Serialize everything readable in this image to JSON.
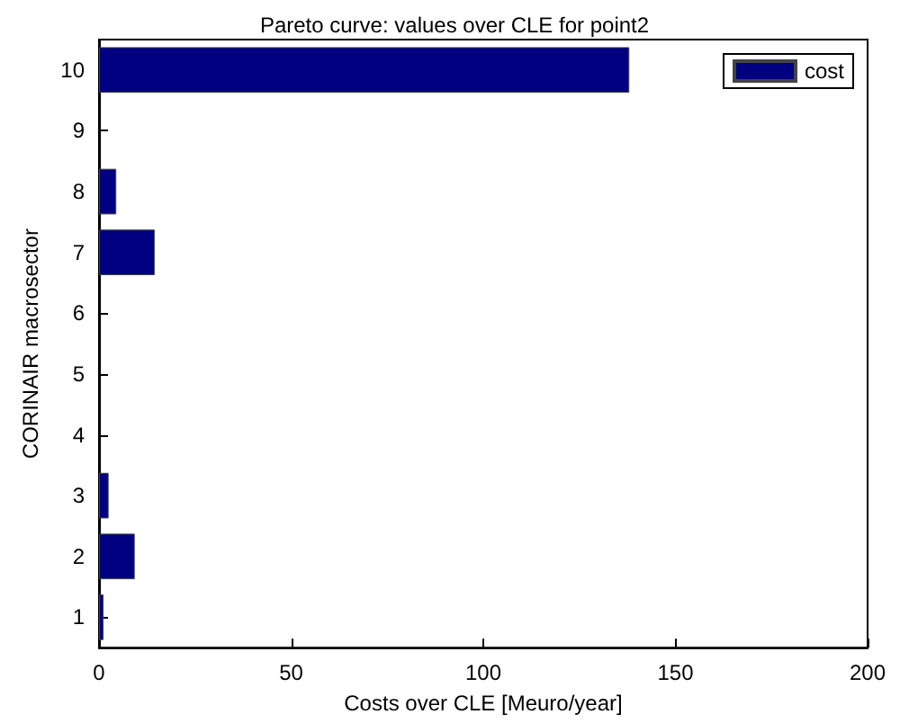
{
  "chart_data": {
    "type": "bar",
    "orientation": "horizontal",
    "title": "Pareto curve: values over CLE for point2",
    "xlabel": "Costs over CLE [Meuro/year]",
    "ylabel": "CORINAIR macrosector",
    "categories": [
      "10",
      "9",
      "8",
      "7",
      "6",
      "5",
      "4",
      "3",
      "2",
      "1"
    ],
    "series": [
      {
        "name": "cost",
        "color": "#000080",
        "values": [
          138,
          null,
          4.5,
          14.5,
          null,
          null,
          null,
          2.5,
          9.3,
          1.2
        ]
      }
    ],
    "xlim": [
      0,
      200
    ],
    "xticks": [
      0,
      50,
      100,
      150,
      200
    ],
    "grid": false,
    "legend": "top right"
  }
}
